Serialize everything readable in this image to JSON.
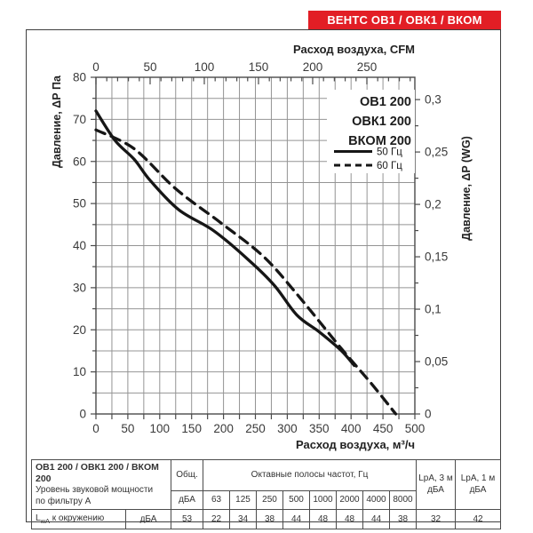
{
  "banner": {
    "title": "ВЕНТС ОВ1 / ОВК1 / ВКОМ",
    "bg_color": "#e21e25",
    "fg_color": "#ffffff"
  },
  "chart_data": {
    "type": "line",
    "top_axis": {
      "label": "Расход воздуха, CFM",
      "unit": "CFM",
      "tick_labels": [
        0,
        50,
        100,
        150,
        200,
        250
      ],
      "minor_step": 10,
      "max": 294,
      "cfm_to_m3h": 1.699
    },
    "bottom_axis": {
      "label": "Расход воздуха, м³/ч",
      "unit": "м³/ч",
      "min": 0,
      "max": 500,
      "label_step": 50,
      "grid_step": 25
    },
    "left_axis": {
      "label": "Давление, ΔР Па",
      "unit": "Па",
      "min": 0,
      "max": 80,
      "label_step": 10,
      "grid_step": 5
    },
    "right_axis": {
      "label": "Давление, ΔP (WG)",
      "unit": "in WG",
      "tick_labels": [
        "0,3",
        "0,25",
        "0,2",
        "0,15",
        "0,1",
        "0,05",
        "0"
      ],
      "tick_values_pa": [
        74.7,
        62.25,
        49.8,
        37.35,
        24.9,
        12.45,
        0
      ],
      "minor_step_pa": 6.225
    },
    "legend": {
      "models": [
        "ОВ1 200",
        "ОВК1 200",
        "ВКОМ 200"
      ],
      "entries": [
        {
          "label": "50 Гц",
          "style": "solid"
        },
        {
          "label": "60 Гц",
          "style": "dashed"
        }
      ]
    },
    "series": [
      {
        "name": "50 Гц",
        "style": "solid",
        "points": [
          [
            0,
            72
          ],
          [
            30,
            65
          ],
          [
            60,
            60.5
          ],
          [
            85,
            55.5
          ],
          [
            130,
            48.5
          ],
          [
            185,
            43.5
          ],
          [
            240,
            36.5
          ],
          [
            280,
            30.5
          ],
          [
            315,
            23.5
          ],
          [
            350,
            19.5
          ],
          [
            385,
            15
          ],
          [
            405,
            11.5
          ]
        ]
      },
      {
        "name": "60 Гц",
        "style": "dashed",
        "points": [
          [
            0,
            67.5
          ],
          [
            60,
            63
          ],
          [
            125,
            53.5
          ],
          [
            195,
            45.5
          ],
          [
            262,
            37.5
          ],
          [
            315,
            28.5
          ],
          [
            385,
            15.5
          ],
          [
            433,
            7
          ],
          [
            470,
            0
          ]
        ]
      }
    ],
    "grid": true,
    "line_color": "#161616"
  },
  "table": {
    "header": {
      "model_line": "ОВ1 200 / ОВК1 200 / ВКОМ 200",
      "desc_line1": "Уровень звуковой мощности",
      "desc_line2": "по фильтру А",
      "total_label": "Общ.",
      "total_unit": "дБА",
      "octave_label": "Октавные полосы частот, Гц",
      "octave_bands": [
        "63",
        "125",
        "250",
        "500",
        "1000",
        "2000",
        "4000",
        "8000"
      ],
      "lpa3_line1": "LpA, 3 м",
      "lpa3_line2": "дБА",
      "lpa1_line1": "LpA, 1 м",
      "lpa1_line2": "дБА"
    },
    "row": {
      "label_main": "L",
      "label_sub": "wA",
      "label_rest": " к окружению",
      "unit": "дБА",
      "total": "53",
      "octaves": [
        "22",
        "34",
        "38",
        "44",
        "48",
        "48",
        "44",
        "38"
      ],
      "lpa3": "32",
      "lpa1": "42"
    }
  }
}
